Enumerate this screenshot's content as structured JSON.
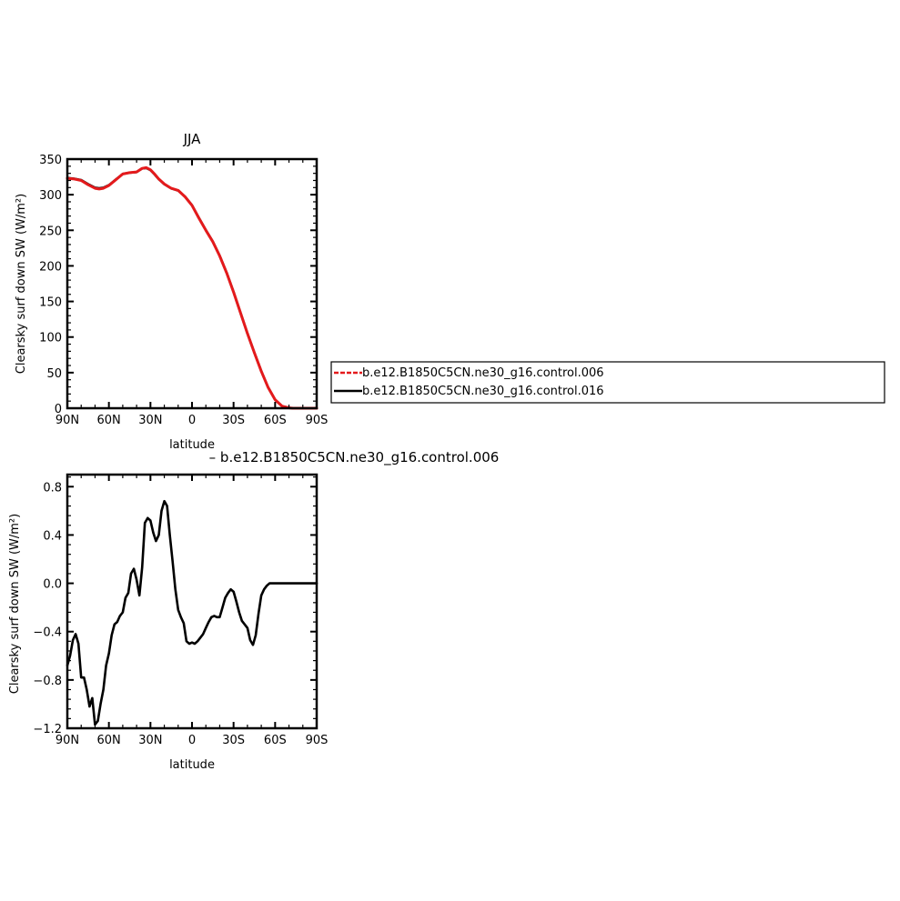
{
  "chart_data": [
    {
      "type": "line",
      "title": "JJA",
      "xlabel": "latitude",
      "ylabel": "Clearsky surf down SW (W/m²)",
      "xlim": [
        90,
        -90
      ],
      "ylim": [
        0,
        350
      ],
      "x_tick_values": [
        90,
        60,
        30,
        0,
        -30,
        -60,
        -90
      ],
      "x_tick_labels": [
        "90N",
        "60N",
        "30N",
        "0",
        "30S",
        "60S",
        "90S"
      ],
      "y_tick_values": [
        0,
        50,
        100,
        150,
        200,
        250,
        300,
        350
      ],
      "y_tick_labels": [
        "0",
        "50",
        "100",
        "150",
        "200",
        "250",
        "300",
        "350"
      ],
      "grid": false,
      "legend_position": "right",
      "series": [
        {
          "name": "b.e12.B1850C5CN.ne30_g16.control.006",
          "color": "#e41a1c",
          "dash": "dashed",
          "x": [
            90,
            85,
            80,
            75,
            70,
            67,
            64,
            60,
            55,
            50,
            45,
            40,
            36,
            33,
            30,
            27,
            24,
            20,
            15,
            10,
            5,
            0,
            -5,
            -10,
            -15,
            -20,
            -25,
            -30,
            -35,
            -40,
            -45,
            -50,
            -55,
            -60,
            -65,
            -70,
            -73,
            -76,
            -80,
            -85,
            -90
          ],
          "y": [
            323,
            322,
            320,
            314,
            309,
            308,
            309,
            313,
            321,
            329,
            331,
            332,
            337,
            338,
            335,
            329,
            322,
            315,
            309,
            306,
            297,
            285,
            267,
            250,
            234,
            214,
            190,
            163,
            134,
            105,
            78,
            52,
            29,
            12,
            3,
            0.5,
            0,
            0,
            0,
            0,
            0
          ]
        },
        {
          "name": "b.e12.B1850C5CN.ne30_g16.control.016",
          "color": "#000000",
          "dash": "solid",
          "x": [
            90,
            85,
            80,
            75,
            70,
            67,
            64,
            60,
            55,
            50,
            45,
            40,
            36,
            33,
            30,
            27,
            24,
            20,
            15,
            10,
            5,
            0,
            -5,
            -10,
            -15,
            -20,
            -25,
            -30,
            -35,
            -40,
            -45,
            -50,
            -55,
            -60,
            -65,
            -70,
            -73,
            -76,
            -80,
            -85,
            -90
          ],
          "y": [
            323.6,
            322.5,
            320.6,
            314.9,
            309.9,
            309.1,
            309.9,
            313.5,
            321.4,
            329.2,
            331.0,
            331.7,
            336.9,
            337.5,
            334.5,
            328.4,
            321.6,
            314.7,
            308.8,
            305.8,
            297.3,
            285.3,
            267.5,
            250.4,
            234.3,
            214.3,
            190.3,
            163.3,
            134.1,
            105.1,
            78.1,
            52.3,
            29.1,
            12.0,
            3.0,
            0.5,
            0,
            0,
            0,
            0,
            0
          ]
        }
      ]
    },
    {
      "type": "line",
      "title": "– b.e12.B1850C5CN.ne30_g16.control.006",
      "xlabel": "latitude",
      "ylabel": "Clearsky surf down SW (W/m²)",
      "xlim": [
        90,
        -90
      ],
      "ylim": [
        -1.2,
        0.9
      ],
      "x_tick_values": [
        90,
        60,
        30,
        0,
        -30,
        -60,
        -90
      ],
      "x_tick_labels": [
        "90N",
        "60N",
        "30N",
        "0",
        "30S",
        "60S",
        "90S"
      ],
      "y_tick_values": [
        -1.2,
        -0.8,
        -0.4,
        0.0,
        0.4,
        0.8
      ],
      "y_tick_labels": [
        "−1.2",
        "−0.8",
        "−0.4",
        "0.0",
        "0.4",
        "0.8"
      ],
      "grid": false,
      "series": [
        {
          "color": "#000000",
          "dash": "solid",
          "x": [
            90,
            88,
            86,
            84,
            82,
            80,
            78,
            76,
            74,
            72,
            70,
            68,
            66,
            64,
            62,
            60,
            58,
            56,
            54,
            52,
            50,
            48,
            46,
            44,
            42,
            40,
            38,
            36,
            34,
            32,
            30,
            28,
            26,
            24,
            22,
            20,
            18,
            16,
            14,
            12,
            10,
            8,
            6,
            4,
            2,
            0,
            -2,
            -4,
            -6,
            -8,
            -10,
            -12,
            -14,
            -16,
            -18,
            -20,
            -22,
            -24,
            -26,
            -28,
            -30,
            -32,
            -34,
            -36,
            -38,
            -40,
            -42,
            -44,
            -46,
            -48,
            -50,
            -52,
            -54,
            -56,
            -58,
            -60,
            -62,
            -64,
            -66,
            -68,
            -70,
            -72,
            -75,
            -80,
            -85,
            -90
          ],
          "y": [
            -0.68,
            -0.6,
            -0.47,
            -0.42,
            -0.5,
            -0.78,
            -0.78,
            -0.88,
            -1.02,
            -0.95,
            -1.17,
            -1.14,
            -1.0,
            -0.88,
            -0.68,
            -0.58,
            -0.43,
            -0.34,
            -0.32,
            -0.27,
            -0.24,
            -0.12,
            -0.08,
            0.08,
            0.12,
            0.03,
            -0.1,
            0.13,
            0.5,
            0.54,
            0.52,
            0.42,
            0.35,
            0.4,
            0.6,
            0.68,
            0.64,
            0.4,
            0.18,
            -0.05,
            -0.22,
            -0.28,
            -0.33,
            -0.48,
            -0.5,
            -0.49,
            -0.5,
            -0.48,
            -0.45,
            -0.42,
            -0.37,
            -0.32,
            -0.28,
            -0.27,
            -0.28,
            -0.28,
            -0.2,
            -0.12,
            -0.08,
            -0.05,
            -0.07,
            -0.15,
            -0.24,
            -0.31,
            -0.34,
            -0.37,
            -0.47,
            -0.51,
            -0.43,
            -0.25,
            -0.1,
            -0.05,
            -0.02,
            0.0,
            0.0,
            0.0,
            0.0,
            0.0,
            0.0,
            0.0,
            0.0,
            0.0,
            0.0,
            0.0,
            0.0,
            0.0
          ]
        }
      ]
    }
  ]
}
